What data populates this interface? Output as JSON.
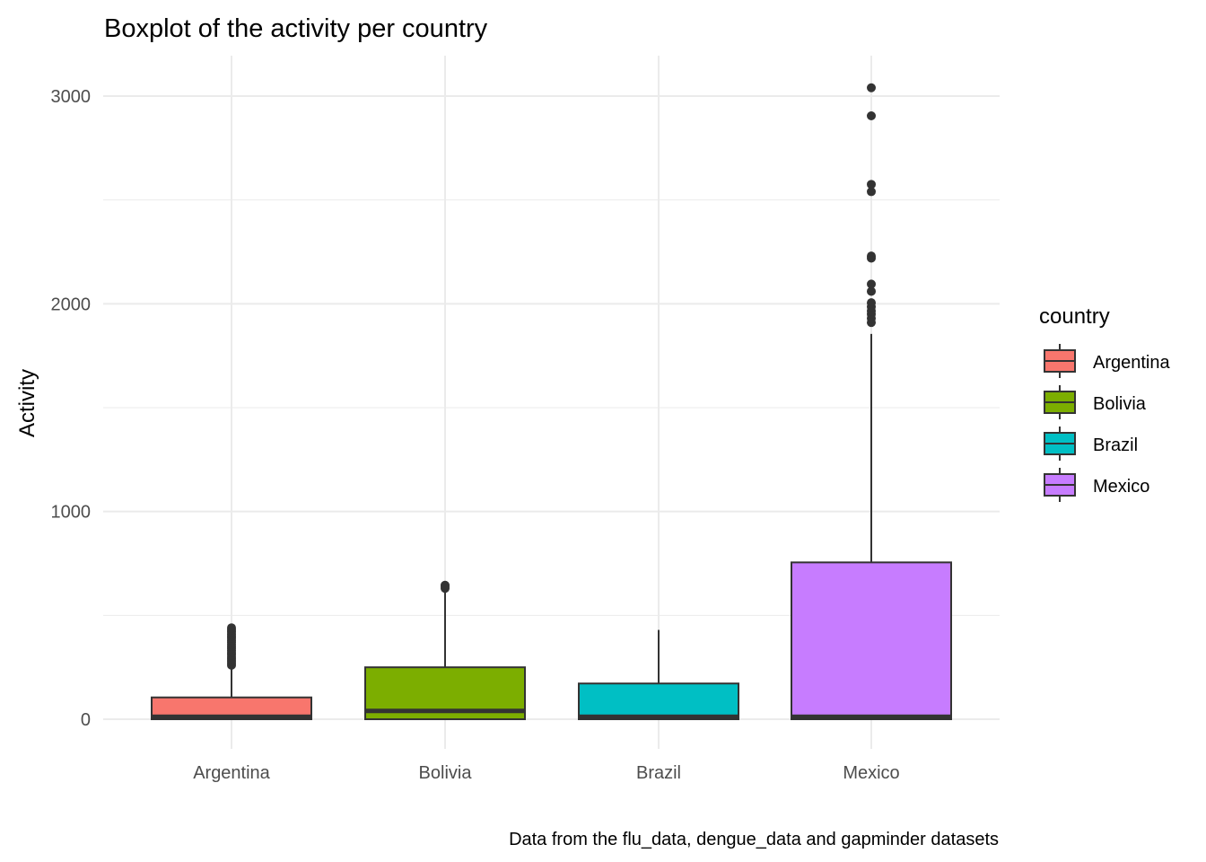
{
  "chart_data": {
    "type": "boxplot",
    "title": "Boxplot of the activity per country",
    "xlabel": "",
    "ylabel": "Activity",
    "caption": "Data from the flu_data, dengue_data and gapminder datasets",
    "ylim": [
      -150,
      3200
    ],
    "yticks": [
      0,
      1000,
      2000,
      3000
    ],
    "yticks_labels": [
      "0",
      "1000",
      "2000",
      "3000"
    ],
    "grid": true,
    "legend": {
      "title": "country",
      "position": "right"
    },
    "categories": [
      "Argentina",
      "Bolivia",
      "Brazil",
      "Mexico"
    ],
    "series": [
      {
        "name": "Argentina",
        "color": "#F8766D",
        "min": 0,
        "q1": 0,
        "median": 12,
        "q3": 105,
        "max": 255,
        "outliers": [
          260,
          270,
          280,
          290,
          300,
          310,
          320,
          330,
          340,
          350,
          360,
          370,
          380,
          390,
          400,
          410,
          420,
          430,
          440
        ]
      },
      {
        "name": "Bolivia",
        "color": "#7CAE00",
        "min": 0,
        "q1": 0,
        "median": 40,
        "q3": 250,
        "max": 625,
        "outliers": [
          630,
          640,
          645
        ]
      },
      {
        "name": "Brazil",
        "color": "#00BFC4",
        "min": 0,
        "q1": 0,
        "median": 12,
        "q3": 172,
        "max": 430,
        "outliers": []
      },
      {
        "name": "Mexico",
        "color": "#C77CFF",
        "min": 0,
        "q1": 0,
        "median": 12,
        "q3": 755,
        "max": 1855,
        "outliers": [
          1910,
          1930,
          1950,
          1965,
          1985,
          2005,
          2060,
          2095,
          2220,
          2230,
          2540,
          2575,
          2905,
          3040
        ]
      }
    ]
  }
}
